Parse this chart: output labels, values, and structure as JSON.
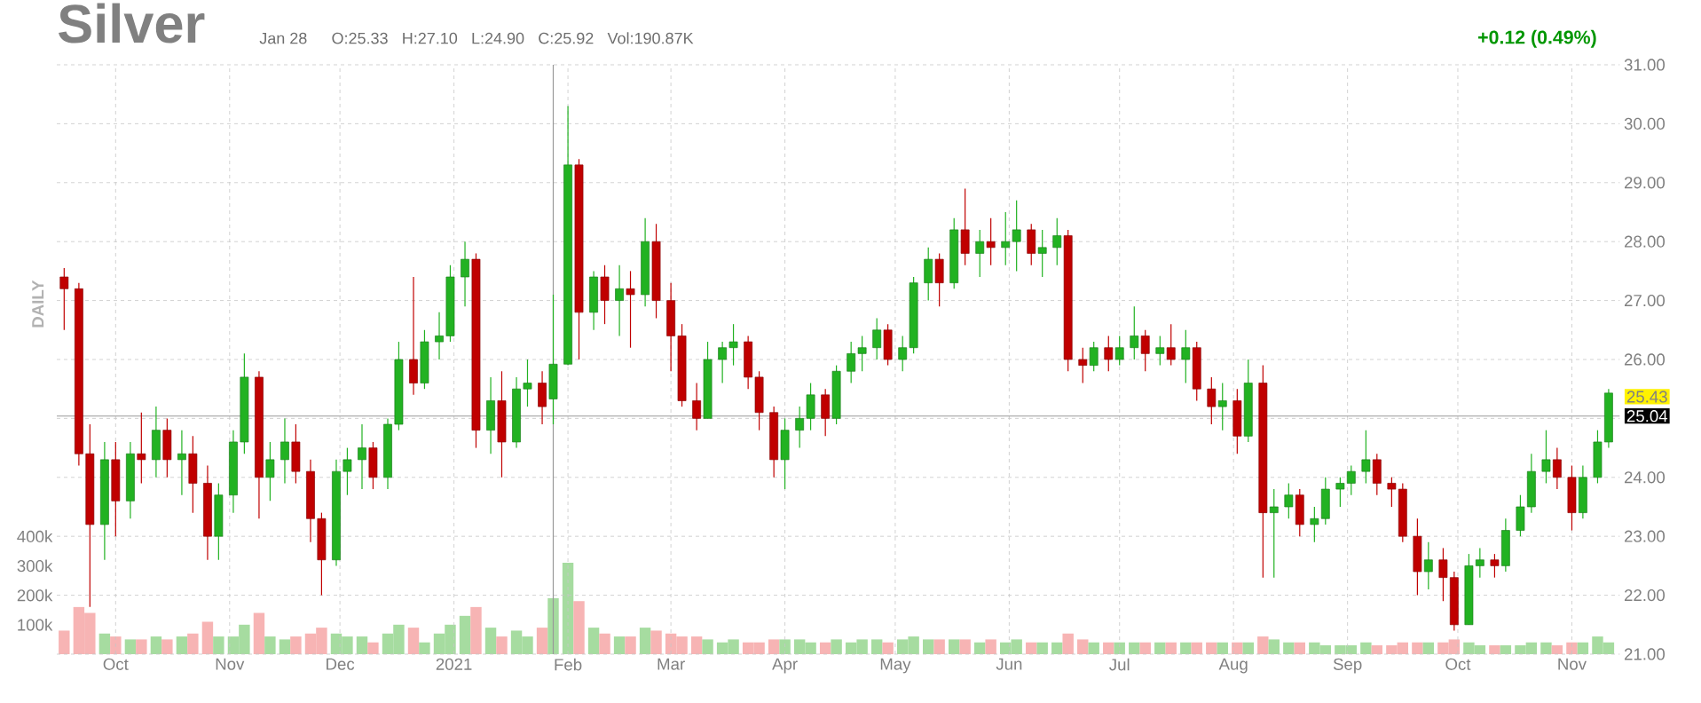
{
  "chart_data": {
    "type": "candlestick",
    "title": "Silver",
    "annotations": [
      "Jan 28",
      "O:25.33",
      "H:27.10",
      "L:24.90",
      "C:25.92",
      "Vol:190.87K",
      "+0.12 (0.49%)",
      "DAILY",
      "25.43"
    ],
    "x": [
      "2020-09-17",
      "2020-09-21",
      "2020-09-24",
      "2020-09-28",
      "2020-10-01",
      "2020-10-05",
      "2020-10-08",
      "2020-10-12",
      "2020-10-15",
      "2020-10-19",
      "2020-10-22",
      "2020-10-26",
      "2020-10-29",
      "2020-11-02",
      "2020-11-05",
      "2020-11-09",
      "2020-11-12",
      "2020-11-16",
      "2020-11-19",
      "2020-11-23",
      "2020-11-26",
      "2020-11-30",
      "2020-12-03",
      "2020-12-07",
      "2020-12-10",
      "2020-12-14",
      "2020-12-17",
      "2020-12-21",
      "2020-12-24",
      "2020-12-28",
      "2020-12-31",
      "2021-01-04",
      "2021-01-07",
      "2021-01-11",
      "2021-01-14",
      "2021-01-18",
      "2021-01-21",
      "2021-01-25",
      "2021-01-28",
      "2021-02-01",
      "2021-02-04",
      "2021-02-08",
      "2021-02-11",
      "2021-02-15",
      "2021-02-18",
      "2021-02-22",
      "2021-02-25",
      "2021-03-01",
      "2021-03-04",
      "2021-03-08",
      "2021-03-11",
      "2021-03-15",
      "2021-03-18",
      "2021-03-22",
      "2021-03-25",
      "2021-03-29",
      "2021-04-01",
      "2021-04-05",
      "2021-04-08",
      "2021-04-12",
      "2021-04-15",
      "2021-04-19",
      "2021-04-22",
      "2021-04-26",
      "2021-04-29",
      "2021-05-03",
      "2021-05-06",
      "2021-05-10",
      "2021-05-13",
      "2021-05-17",
      "2021-05-20",
      "2021-05-24",
      "2021-05-27",
      "2021-05-31",
      "2021-06-03",
      "2021-06-07",
      "2021-06-10",
      "2021-06-14",
      "2021-06-17",
      "2021-06-21",
      "2021-06-24",
      "2021-06-28",
      "2021-07-01",
      "2021-07-05",
      "2021-07-08",
      "2021-07-12",
      "2021-07-15",
      "2021-07-19",
      "2021-07-22",
      "2021-07-26",
      "2021-07-29",
      "2021-08-02",
      "2021-08-05",
      "2021-08-09",
      "2021-08-12",
      "2021-08-16",
      "2021-08-19",
      "2021-08-23",
      "2021-08-26",
      "2021-08-30",
      "2021-09-02",
      "2021-09-06",
      "2021-09-09",
      "2021-09-13",
      "2021-09-16",
      "2021-09-20",
      "2021-09-23",
      "2021-09-27",
      "2021-09-30",
      "2021-10-04",
      "2021-10-07",
      "2021-10-11",
      "2021-10-14",
      "2021-10-18",
      "2021-10-21",
      "2021-10-25",
      "2021-10-28",
      "2021-11-01",
      "2021-11-04",
      "2021-11-08",
      "2021-11-11"
    ],
    "ohlc": [
      [
        27.4,
        27.55,
        26.5,
        27.2
      ],
      [
        27.2,
        27.3,
        24.2,
        24.4
      ],
      [
        24.4,
        24.9,
        21.8,
        23.2
      ],
      [
        23.2,
        24.6,
        22.6,
        24.3
      ],
      [
        24.3,
        24.6,
        23.0,
        23.6
      ],
      [
        23.6,
        24.6,
        23.3,
        24.4
      ],
      [
        24.4,
        25.1,
        23.9,
        24.3
      ],
      [
        24.3,
        25.2,
        24.0,
        24.8
      ],
      [
        24.8,
        25.0,
        24.0,
        24.3
      ],
      [
        24.3,
        24.8,
        23.7,
        24.4
      ],
      [
        24.4,
        24.7,
        23.4,
        23.9
      ],
      [
        23.9,
        24.2,
        22.6,
        23.0
      ],
      [
        23.0,
        23.9,
        22.6,
        23.7
      ],
      [
        23.7,
        24.8,
        23.4,
        24.6
      ],
      [
        24.6,
        26.1,
        24.4,
        25.7
      ],
      [
        25.7,
        25.8,
        23.3,
        24.0
      ],
      [
        24.0,
        24.6,
        23.6,
        24.3
      ],
      [
        24.3,
        25.0,
        23.9,
        24.6
      ],
      [
        24.6,
        24.9,
        23.9,
        24.1
      ],
      [
        24.1,
        24.3,
        22.9,
        23.3
      ],
      [
        23.3,
        23.4,
        22.0,
        22.6
      ],
      [
        22.6,
        24.3,
        22.5,
        24.1
      ],
      [
        24.1,
        24.5,
        23.7,
        24.3
      ],
      [
        24.3,
        24.9,
        23.8,
        24.5
      ],
      [
        24.5,
        24.6,
        23.8,
        24.0
      ],
      [
        24.0,
        25.0,
        23.8,
        24.9
      ],
      [
        24.9,
        26.3,
        24.8,
        26.0
      ],
      [
        26.0,
        27.4,
        25.4,
        25.6
      ],
      [
        25.6,
        26.5,
        25.5,
        26.3
      ],
      [
        26.3,
        26.8,
        26.0,
        26.4
      ],
      [
        26.4,
        27.6,
        26.3,
        27.4
      ],
      [
        27.4,
        28.0,
        26.9,
        27.7
      ],
      [
        27.7,
        27.8,
        24.5,
        24.8
      ],
      [
        24.8,
        25.7,
        24.4,
        25.3
      ],
      [
        25.3,
        25.8,
        24.0,
        24.6
      ],
      [
        24.6,
        25.7,
        24.5,
        25.5
      ],
      [
        25.5,
        26.0,
        25.2,
        25.6
      ],
      [
        25.6,
        25.8,
        24.9,
        25.2
      ],
      [
        25.33,
        27.1,
        24.9,
        25.92
      ],
      [
        25.92,
        30.3,
        25.9,
        29.3
      ],
      [
        29.3,
        29.4,
        26.0,
        26.8
      ],
      [
        26.8,
        27.5,
        26.5,
        27.4
      ],
      [
        27.4,
        27.6,
        26.6,
        27.0
      ],
      [
        27.0,
        27.6,
        26.4,
        27.2
      ],
      [
        27.2,
        27.5,
        26.2,
        27.1
      ],
      [
        27.1,
        28.4,
        26.9,
        28.0
      ],
      [
        28.0,
        28.3,
        26.7,
        27.0
      ],
      [
        27.0,
        27.3,
        25.8,
        26.4
      ],
      [
        26.4,
        26.6,
        25.2,
        25.3
      ],
      [
        25.3,
        25.6,
        24.8,
        25.0
      ],
      [
        25.0,
        26.3,
        25.0,
        26.0
      ],
      [
        26.0,
        26.3,
        25.6,
        26.2
      ],
      [
        26.2,
        26.6,
        25.9,
        26.3
      ],
      [
        26.3,
        26.4,
        25.5,
        25.7
      ],
      [
        25.7,
        25.8,
        24.8,
        25.1
      ],
      [
        25.1,
        25.2,
        24.0,
        24.3
      ],
      [
        24.3,
        25.0,
        23.8,
        24.8
      ],
      [
        24.8,
        25.2,
        24.5,
        25.0
      ],
      [
        25.0,
        25.6,
        24.8,
        25.4
      ],
      [
        25.4,
        25.5,
        24.7,
        25.0
      ],
      [
        25.0,
        25.9,
        24.9,
        25.8
      ],
      [
        25.8,
        26.3,
        25.6,
        26.1
      ],
      [
        26.1,
        26.4,
        25.8,
        26.2
      ],
      [
        26.2,
        26.7,
        26.0,
        26.5
      ],
      [
        26.5,
        26.6,
        25.9,
        26.0
      ],
      [
        26.0,
        26.4,
        25.8,
        26.2
      ],
      [
        26.2,
        27.4,
        26.1,
        27.3
      ],
      [
        27.3,
        27.9,
        27.0,
        27.7
      ],
      [
        27.7,
        27.8,
        26.9,
        27.3
      ],
      [
        27.3,
        28.4,
        27.2,
        28.2
      ],
      [
        28.2,
        28.9,
        27.6,
        27.8
      ],
      [
        27.8,
        28.2,
        27.4,
        28.0
      ],
      [
        28.0,
        28.4,
        27.6,
        27.9
      ],
      [
        27.9,
        28.5,
        27.6,
        28.0
      ],
      [
        28.0,
        28.7,
        27.5,
        28.2
      ],
      [
        28.2,
        28.3,
        27.6,
        27.8
      ],
      [
        27.8,
        28.2,
        27.4,
        27.9
      ],
      [
        27.9,
        28.4,
        27.6,
        28.1
      ],
      [
        28.1,
        28.2,
        25.8,
        26.0
      ],
      [
        26.0,
        26.2,
        25.6,
        25.9
      ],
      [
        25.9,
        26.3,
        25.8,
        26.2
      ],
      [
        26.2,
        26.4,
        25.8,
        26.0
      ],
      [
        26.0,
        26.4,
        25.9,
        26.2
      ],
      [
        26.2,
        26.9,
        26.0,
        26.4
      ],
      [
        26.4,
        26.5,
        25.8,
        26.1
      ],
      [
        26.1,
        26.4,
        25.9,
        26.2
      ],
      [
        26.2,
        26.6,
        25.9,
        26.0
      ],
      [
        26.0,
        26.5,
        25.6,
        26.2
      ],
      [
        26.2,
        26.3,
        25.3,
        25.5
      ],
      [
        25.5,
        25.7,
        24.9,
        25.2
      ],
      [
        25.2,
        25.6,
        24.8,
        25.3
      ],
      [
        25.3,
        25.5,
        24.4,
        24.7
      ],
      [
        24.7,
        26.0,
        24.6,
        25.6
      ],
      [
        25.6,
        25.9,
        22.3,
        23.4
      ],
      [
        23.4,
        23.8,
        22.3,
        23.5
      ],
      [
        23.5,
        23.9,
        23.3,
        23.7
      ],
      [
        23.7,
        23.8,
        23.0,
        23.2
      ],
      [
        23.2,
        23.5,
        22.9,
        23.3
      ],
      [
        23.3,
        24.0,
        23.2,
        23.8
      ],
      [
        23.8,
        24.0,
        23.5,
        23.9
      ],
      [
        23.9,
        24.2,
        23.7,
        24.1
      ],
      [
        24.1,
        24.8,
        23.9,
        24.3
      ],
      [
        24.3,
        24.4,
        23.7,
        23.9
      ],
      [
        23.9,
        24.0,
        23.5,
        23.8
      ],
      [
        23.8,
        23.9,
        22.9,
        23.0
      ],
      [
        23.0,
        23.3,
        22.0,
        22.4
      ],
      [
        22.4,
        22.9,
        22.1,
        22.6
      ],
      [
        22.6,
        22.8,
        21.9,
        22.3
      ],
      [
        22.3,
        22.4,
        21.4,
        21.5
      ],
      [
        21.5,
        22.7,
        21.5,
        22.5
      ],
      [
        22.5,
        22.8,
        22.3,
        22.6
      ],
      [
        22.6,
        22.7,
        22.3,
        22.5
      ],
      [
        22.5,
        23.3,
        22.4,
        23.1
      ],
      [
        23.1,
        23.7,
        23.0,
        23.5
      ],
      [
        23.5,
        24.4,
        23.4,
        24.1
      ],
      [
        24.1,
        24.8,
        23.9,
        24.3
      ],
      [
        24.3,
        24.5,
        23.8,
        24.0
      ],
      [
        24.0,
        24.2,
        23.1,
        23.4
      ],
      [
        23.4,
        24.2,
        23.3,
        24.0
      ],
      [
        24.0,
        24.8,
        23.9,
        24.6
      ],
      [
        24.6,
        25.5,
        24.5,
        25.43
      ]
    ],
    "colors": [
      "#c00000",
      "#c00000",
      "#c00000",
      "#22b222",
      "#c00000",
      "#22b222",
      "#c00000",
      "#22b222",
      "#c00000",
      "#22b222",
      "#c00000",
      "#c00000",
      "#22b222",
      "#22b222",
      "#22b222",
      "#c00000",
      "#22b222",
      "#22b222",
      "#c00000",
      "#c00000",
      "#c00000",
      "#22b222",
      "#22b222",
      "#22b222",
      "#c00000",
      "#22b222",
      "#22b222",
      "#c00000",
      "#22b222",
      "#22b222",
      "#22b222",
      "#22b222",
      "#c00000",
      "#22b222",
      "#c00000",
      "#22b222",
      "#22b222",
      "#c00000",
      "#22b222",
      "#22b222",
      "#c00000",
      "#22b222",
      "#c00000",
      "#22b222",
      "#c00000",
      "#22b222",
      "#c00000",
      "#c00000",
      "#c00000",
      "#c00000",
      "#22b222",
      "#22b222",
      "#22b222",
      "#c00000",
      "#c00000",
      "#c00000",
      "#22b222",
      "#22b222",
      "#22b222",
      "#c00000",
      "#22b222",
      "#22b222",
      "#22b222",
      "#22b222",
      "#c00000",
      "#22b222",
      "#22b222",
      "#22b222",
      "#c00000",
      "#22b222",
      "#c00000",
      "#22b222",
      "#c00000",
      "#22b222",
      "#22b222",
      "#c00000",
      "#22b222",
      "#22b222",
      "#c00000",
      "#c00000",
      "#22b222",
      "#c00000",
      "#22b222",
      "#22b222",
      "#c00000",
      "#22b222",
      "#c00000",
      "#22b222",
      "#c00000",
      "#c00000",
      "#22b222",
      "#c00000",
      "#22b222",
      "#c00000",
      "#22b222",
      "#22b222",
      "#c00000",
      "#22b222",
      "#22b222",
      "#22b222",
      "#22b222",
      "#22b222",
      "#c00000",
      "#c00000",
      "#c00000",
      "#c00000",
      "#22b222",
      "#c00000",
      "#c00000",
      "#22b222",
      "#22b222",
      "#c00000",
      "#22b222",
      "#22b222",
      "#22b222",
      "#22b222",
      "#c00000",
      "#c00000",
      "#22b222",
      "#22b222",
      "#22b222"
    ],
    "series": [
      {
        "type": "bar",
        "axis": "y2",
        "values": [
          80000,
          160000,
          140000,
          70000,
          60000,
          50000,
          50000,
          60000,
          50000,
          60000,
          70000,
          110000,
          60000,
          60000,
          100000,
          140000,
          60000,
          50000,
          60000,
          70000,
          90000,
          70000,
          60000,
          60000,
          40000,
          70000,
          100000,
          90000,
          40000,
          70000,
          100000,
          130000,
          160000,
          90000,
          60000,
          80000,
          60000,
          90000,
          190000,
          310000,
          180000,
          90000,
          70000,
          60000,
          60000,
          90000,
          80000,
          70000,
          60000,
          60000,
          50000,
          40000,
          50000,
          40000,
          40000,
          50000,
          50000,
          50000,
          40000,
          40000,
          50000,
          40000,
          50000,
          50000,
          40000,
          50000,
          60000,
          50000,
          50000,
          50000,
          50000,
          40000,
          50000,
          40000,
          50000,
          40000,
          40000,
          40000,
          70000,
          50000,
          40000,
          40000,
          40000,
          40000,
          40000,
          40000,
          40000,
          40000,
          40000,
          40000,
          40000,
          40000,
          40000,
          60000,
          50000,
          40000,
          40000,
          40000,
          30000,
          30000,
          30000,
          40000,
          30000,
          30000,
          40000,
          40000,
          40000,
          40000,
          50000,
          40000,
          30000,
          30000,
          30000,
          30000,
          40000,
          40000,
          30000,
          40000,
          40000,
          60000,
          40000
        ],
        "colors": [
          "#f7b4b4",
          "#f7b4b4",
          "#f7b4b4",
          "#a6dca0",
          "#f7b4b4",
          "#a6dca0",
          "#f7b4b4",
          "#a6dca0",
          "#f7b4b4",
          "#a6dca0",
          "#f7b4b4",
          "#f7b4b4",
          "#a6dca0",
          "#a6dca0",
          "#a6dca0",
          "#f7b4b4",
          "#a6dca0",
          "#a6dca0",
          "#f7b4b4",
          "#f7b4b4",
          "#f7b4b4",
          "#a6dca0",
          "#a6dca0",
          "#a6dca0",
          "#f7b4b4",
          "#a6dca0",
          "#a6dca0",
          "#f7b4b4",
          "#a6dca0",
          "#a6dca0",
          "#a6dca0",
          "#a6dca0",
          "#f7b4b4",
          "#a6dca0",
          "#f7b4b4",
          "#a6dca0",
          "#a6dca0",
          "#f7b4b4",
          "#a6dca0",
          "#a6dca0",
          "#f7b4b4",
          "#a6dca0",
          "#f7b4b4",
          "#a6dca0",
          "#f7b4b4",
          "#a6dca0",
          "#f7b4b4",
          "#f7b4b4",
          "#f7b4b4",
          "#f7b4b4",
          "#a6dca0",
          "#a6dca0",
          "#a6dca0",
          "#f7b4b4",
          "#f7b4b4",
          "#f7b4b4",
          "#a6dca0",
          "#a6dca0",
          "#a6dca0",
          "#f7b4b4",
          "#a6dca0",
          "#a6dca0",
          "#a6dca0",
          "#a6dca0",
          "#f7b4b4",
          "#a6dca0",
          "#a6dca0",
          "#a6dca0",
          "#f7b4b4",
          "#a6dca0",
          "#f7b4b4",
          "#a6dca0",
          "#f7b4b4",
          "#a6dca0",
          "#a6dca0",
          "#f7b4b4",
          "#a6dca0",
          "#a6dca0",
          "#f7b4b4",
          "#f7b4b4",
          "#a6dca0",
          "#f7b4b4",
          "#a6dca0",
          "#a6dca0",
          "#f7b4b4",
          "#a6dca0",
          "#f7b4b4",
          "#a6dca0",
          "#f7b4b4",
          "#f7b4b4",
          "#a6dca0",
          "#f7b4b4",
          "#a6dca0",
          "#f7b4b4",
          "#a6dca0",
          "#a6dca0",
          "#f7b4b4",
          "#a6dca0",
          "#a6dca0",
          "#a6dca0",
          "#a6dca0",
          "#a6dca0",
          "#f7b4b4",
          "#f7b4b4",
          "#f7b4b4",
          "#f7b4b4",
          "#a6dca0",
          "#f7b4b4",
          "#f7b4b4",
          "#a6dca0",
          "#a6dca0",
          "#f7b4b4",
          "#a6dca0",
          "#a6dca0",
          "#a6dca0",
          "#a6dca0",
          "#f7b4b4",
          "#f7b4b4",
          "#a6dca0",
          "#a6dca0",
          "#a6dca0"
        ]
      }
    ],
    "xlim": [
      "2020-09-15",
      "2021-11-14"
    ],
    "xticks": [
      {
        "value": "2020-10-01",
        "label": "Oct"
      },
      {
        "value": "2020-11-01",
        "label": "Nov"
      },
      {
        "value": "2020-12-01",
        "label": "Dec"
      },
      {
        "value": "2021-01-01",
        "label": "2021"
      },
      {
        "value": "2021-02-01",
        "label": "Feb"
      },
      {
        "value": "2021-03-01",
        "label": "Mar"
      },
      {
        "value": "2021-04-01",
        "label": "Apr"
      },
      {
        "value": "2021-05-01",
        "label": "May"
      },
      {
        "value": "2021-06-01",
        "label": "Jun"
      },
      {
        "value": "2021-07-01",
        "label": "Jul"
      },
      {
        "value": "2021-08-01",
        "label": "Aug"
      },
      {
        "value": "2021-09-01",
        "label": "Sep"
      },
      {
        "value": "2021-10-01",
        "label": "Oct"
      },
      {
        "value": "2021-11-01",
        "label": "Nov"
      }
    ],
    "ylim": [
      21,
      31
    ],
    "yticks": [
      {
        "value": 21,
        "label": "21.00"
      },
      {
        "value": 22,
        "label": "22.00"
      },
      {
        "value": 23,
        "label": "23.00"
      },
      {
        "value": 24,
        "label": "24.00"
      },
      {
        "value": 25,
        "label": null
      },
      {
        "value": 26,
        "label": "26.00"
      },
      {
        "value": 27,
        "label": "27.00"
      },
      {
        "value": 28,
        "label": "28.00"
      },
      {
        "value": 29,
        "label": "29.00"
      },
      {
        "value": 30,
        "label": "30.00"
      },
      {
        "value": 31,
        "label": "31.00"
      }
    ],
    "y2lim": [
      0,
      2000000
    ],
    "y2ticks": [
      {
        "value": 100000,
        "label": "100k"
      },
      {
        "value": 200000,
        "label": "200k"
      },
      {
        "value": 300000,
        "label": "300k"
      },
      {
        "value": 400000,
        "label": "400k"
      }
    ],
    "ref_lines": [
      {
        "axis": "y",
        "value": 25.04,
        "label": "25.04",
        "color": "#999999"
      },
      {
        "axis": "x",
        "value": "2021-01-28",
        "color": "#999999"
      }
    ],
    "grid": true
  }
}
